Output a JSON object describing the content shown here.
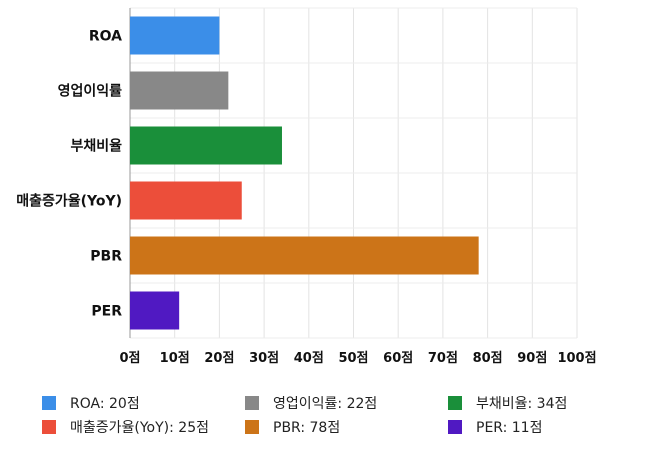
{
  "chart_data": {
    "type": "bar",
    "orientation": "horizontal",
    "categories": [
      "ROA",
      "영업이익률",
      "부채비율",
      "매출증가율(YoY)",
      "PBR",
      "PER"
    ],
    "values": [
      20,
      22,
      34,
      25,
      78,
      11
    ],
    "colors": [
      "#3b8ee8",
      "#888888",
      "#1a8f3a",
      "#ec4e3a",
      "#cc7418",
      "#5019c2"
    ],
    "xlim": [
      0,
      100
    ],
    "x_ticks": [
      0,
      10,
      20,
      30,
      40,
      50,
      60,
      70,
      80,
      90,
      100
    ],
    "x_tick_labels": [
      "0점",
      "10점",
      "20점",
      "30점",
      "40점",
      "50점",
      "60점",
      "70점",
      "80점",
      "90점",
      "100점"
    ],
    "grid": true,
    "legend": {
      "placement": "bottom",
      "entries": [
        {
          "label": "ROA: 20점",
          "color": "#3b8ee8"
        },
        {
          "label": "영업이익률: 22점",
          "color": "#888888"
        },
        {
          "label": "부채비율: 34점",
          "color": "#1a8f3a"
        },
        {
          "label": "매출증가율(YoY): 25점",
          "color": "#ec4e3a"
        },
        {
          "label": "PBR: 78점",
          "color": "#cc7418"
        },
        {
          "label": "PER: 11점",
          "color": "#5019c2"
        }
      ]
    }
  }
}
